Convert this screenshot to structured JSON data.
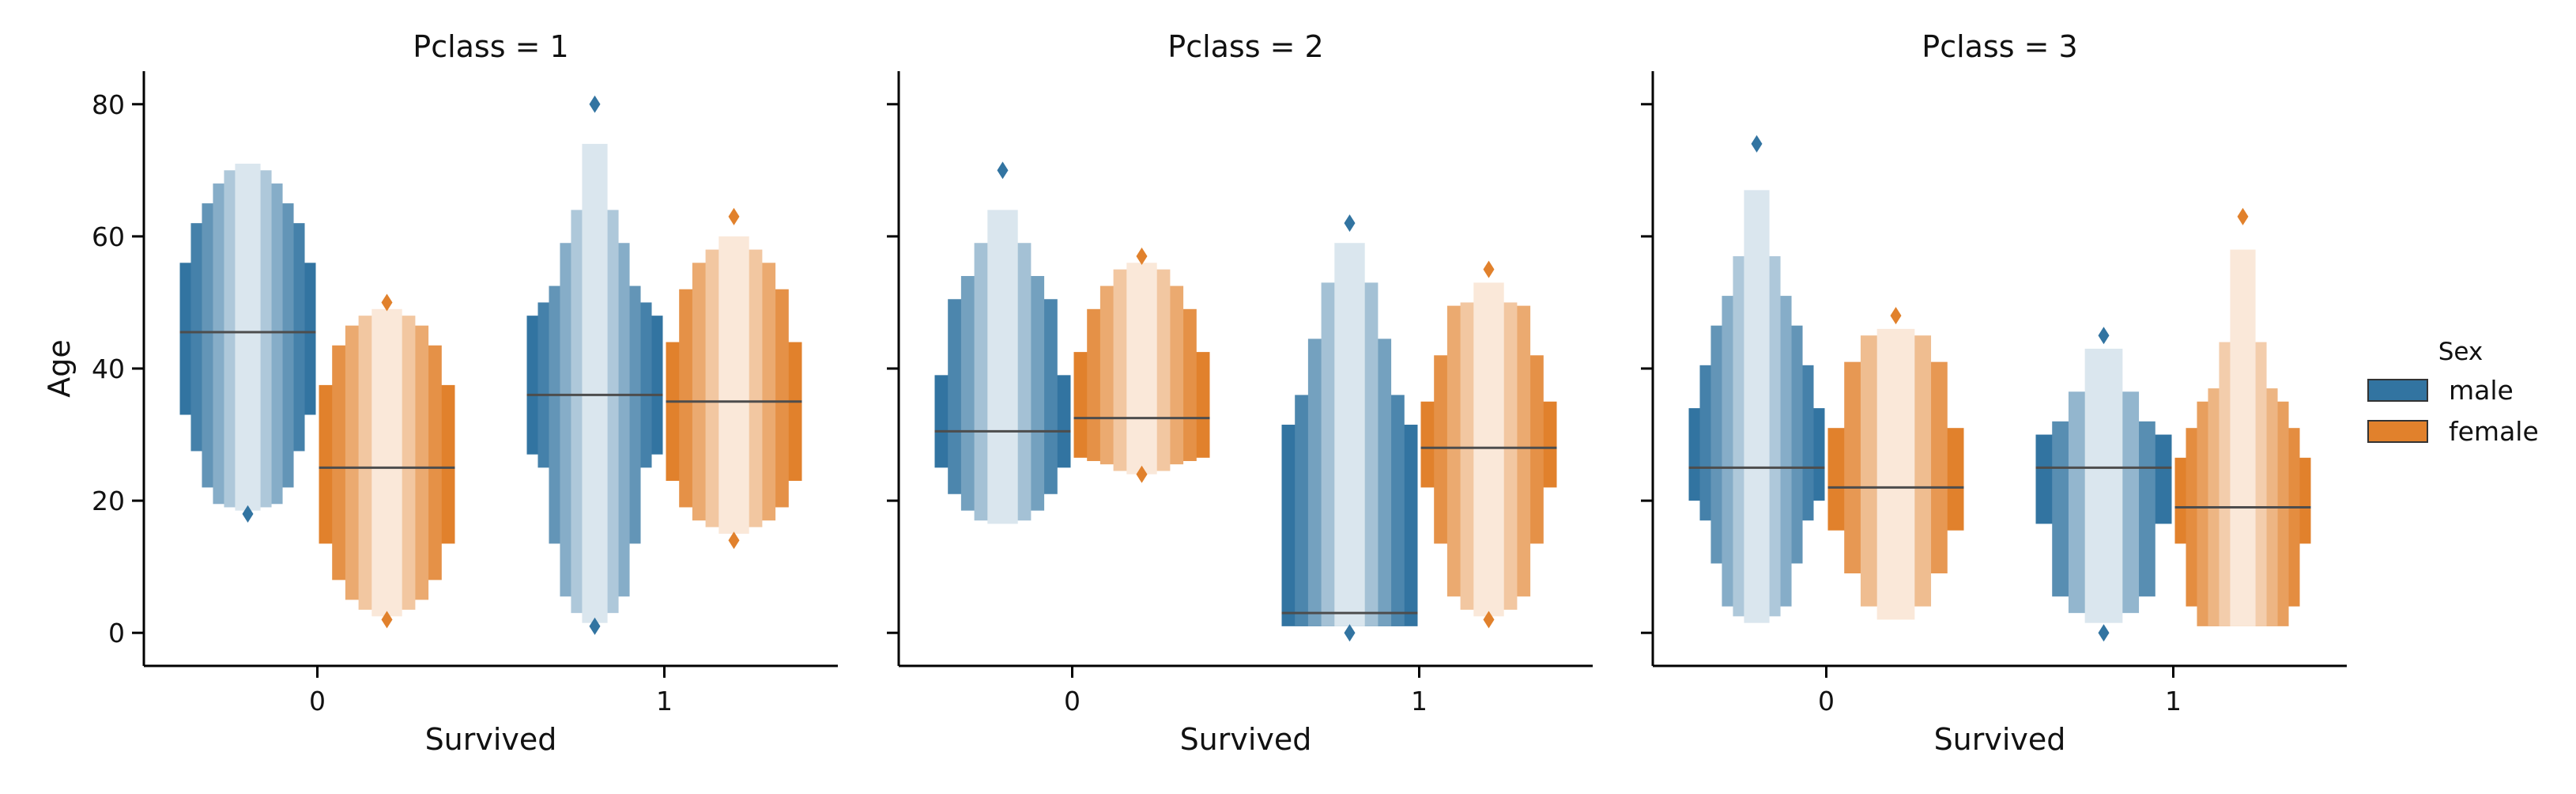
{
  "chart_data": {
    "type": "boxen",
    "x_label": "Survived",
    "y_label": "Age",
    "x_categories": [
      "0",
      "1"
    ],
    "ylim": [
      -5,
      85
    ],
    "yticks": [
      0,
      20,
      40,
      60,
      80
    ],
    "grid": false,
    "legend": {
      "title": "Sex",
      "position": "right",
      "entries": [
        {
          "name": "male",
          "color": "#3274a1"
        },
        {
          "name": "female",
          "color": "#e1812c"
        }
      ]
    },
    "panels": [
      {
        "title": "Pclass = 1",
        "groups": [
          {
            "survived": "0",
            "sex": "male",
            "median": 45.5,
            "letter_values": [
              [
                33,
                56
              ],
              [
                27.5,
                62
              ],
              [
                22,
                65
              ],
              [
                19.5,
                68
              ],
              [
                19,
                70
              ],
              [
                18.5,
                71
              ]
            ],
            "outliers": [
              18
            ]
          },
          {
            "survived": "0",
            "sex": "female",
            "median": 25,
            "letter_values": [
              [
                13.5,
                37.5
              ],
              [
                8,
                43.5
              ],
              [
                5,
                46.5
              ],
              [
                3.5,
                48
              ],
              [
                2.5,
                49
              ]
            ],
            "outliers": [
              2,
              50
            ]
          },
          {
            "survived": "1",
            "sex": "male",
            "median": 36,
            "letter_values": [
              [
                27,
                48
              ],
              [
                25,
                50
              ],
              [
                13.5,
                52.5
              ],
              [
                5.5,
                59
              ],
              [
                3,
                64
              ],
              [
                1.5,
                74
              ]
            ],
            "outliers": [
              1,
              80
            ]
          },
          {
            "survived": "1",
            "sex": "female",
            "median": 35,
            "letter_values": [
              [
                23,
                44
              ],
              [
                19,
                52
              ],
              [
                17,
                56
              ],
              [
                16,
                58
              ],
              [
                15,
                60
              ]
            ],
            "outliers": [
              14,
              63
            ]
          }
        ]
      },
      {
        "title": "Pclass = 2",
        "groups": [
          {
            "survived": "0",
            "sex": "male",
            "median": 30.5,
            "letter_values": [
              [
                25,
                39
              ],
              [
                21,
                50.5
              ],
              [
                18.5,
                54
              ],
              [
                17,
                59
              ],
              [
                16.5,
                64
              ]
            ],
            "outliers": [
              70
            ]
          },
          {
            "survived": "0",
            "sex": "female",
            "median": 32.5,
            "letter_values": [
              [
                26.5,
                42.5
              ],
              [
                26,
                49
              ],
              [
                25.5,
                52.5
              ],
              [
                24.5,
                55
              ],
              [
                24,
                56
              ]
            ],
            "outliers": [
              24,
              57
            ]
          },
          {
            "survived": "1",
            "sex": "male",
            "median": 3,
            "letter_values": [
              [
                1,
                31.5
              ],
              [
                1,
                36
              ],
              [
                1,
                44.5
              ],
              [
                1,
                53
              ],
              [
                1,
                59
              ]
            ],
            "outliers": [
              0,
              62
            ]
          },
          {
            "survived": "1",
            "sex": "female",
            "median": 28,
            "letter_values": [
              [
                22,
                35
              ],
              [
                13.5,
                42
              ],
              [
                5.5,
                49.5
              ],
              [
                3.5,
                50
              ],
              [
                2.5,
                53
              ]
            ],
            "outliers": [
              2,
              55
            ]
          }
        ]
      },
      {
        "title": "Pclass = 3",
        "groups": [
          {
            "survived": "0",
            "sex": "male",
            "median": 25,
            "letter_values": [
              [
                20,
                34
              ],
              [
                17,
                40.5
              ],
              [
                10.5,
                46.5
              ],
              [
                4,
                51
              ],
              [
                2.5,
                57
              ],
              [
                1.5,
                67
              ]
            ],
            "outliers": [
              74
            ]
          },
          {
            "survived": "0",
            "sex": "female",
            "median": 22,
            "letter_values": [
              [
                15.5,
                31
              ],
              [
                9,
                41
              ],
              [
                4,
                45
              ],
              [
                2,
                46
              ]
            ],
            "outliers": [
              48
            ]
          },
          {
            "survived": "1",
            "sex": "male",
            "median": 25,
            "letter_values": [
              [
                16.5,
                30
              ],
              [
                5.5,
                32
              ],
              [
                3,
                36.5
              ],
              [
                1.5,
                43
              ]
            ],
            "outliers": [
              0,
              45
            ]
          },
          {
            "survived": "1",
            "sex": "female",
            "median": 19,
            "letter_values": [
              [
                13.5,
                26.5
              ],
              [
                4,
                31
              ],
              [
                1,
                35
              ],
              [
                1,
                37
              ],
              [
                1,
                44
              ],
              [
                1,
                58
              ]
            ],
            "outliers": [
              63
            ]
          }
        ]
      }
    ]
  }
}
